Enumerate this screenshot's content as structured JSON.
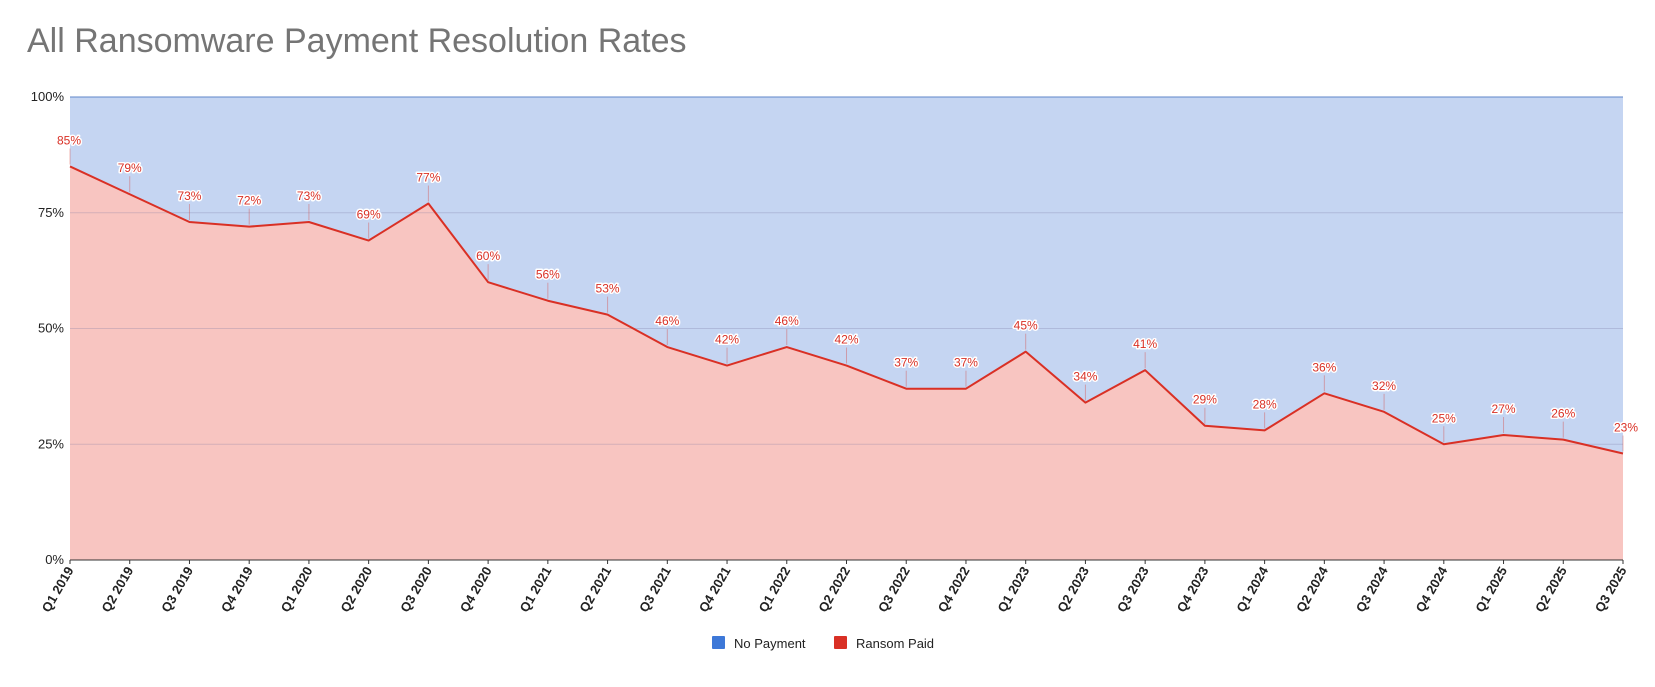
{
  "chart_data": {
    "type": "area",
    "stacked": true,
    "percent_stacked": true,
    "title": "All Ransomware Payment Resolution Rates",
    "xlabel": "",
    "ylabel": "",
    "ylim": [
      0,
      100
    ],
    "y_ticks": [
      "0%",
      "25%",
      "50%",
      "75%",
      "100%"
    ],
    "y_tick_values": [
      0,
      25,
      50,
      75,
      100
    ],
    "grid": true,
    "legend_position": "bottom",
    "categories": [
      "Q1 2019",
      "Q2 2019",
      "Q3 2019",
      "Q4 2019",
      "Q1 2020",
      "Q2 2020",
      "Q3 2020",
      "Q4 2020",
      "Q1 2021",
      "Q2 2021",
      "Q3 2021",
      "Q4 2021",
      "Q1 2022",
      "Q2 2022",
      "Q3 2022",
      "Q4 2022",
      "Q1 2023",
      "Q2 2023",
      "Q3 2023",
      "Q4 2023",
      "Q1 2024",
      "Q2 2024",
      "Q3 2024",
      "Q4 2024",
      "Q1 2025",
      "Q2 2025",
      "Q3 2025"
    ],
    "series": [
      {
        "name": "No Payment",
        "color": "#3d78d8",
        "fill": "#c5d5f2",
        "values": [
          15,
          21,
          27,
          28,
          27,
          31,
          23,
          40,
          44,
          47,
          54,
          58,
          54,
          58,
          63,
          63,
          55,
          66,
          59,
          71,
          72,
          64,
          68,
          75,
          73,
          74,
          77
        ]
      },
      {
        "name": "Ransom Paid",
        "color": "#d93025",
        "fill": "#f8c5c1",
        "values": [
          85,
          79,
          73,
          72,
          73,
          69,
          77,
          60,
          56,
          53,
          46,
          42,
          46,
          42,
          37,
          37,
          45,
          34,
          41,
          29,
          28,
          36,
          32,
          25,
          27,
          26,
          23
        ],
        "data_labels": [
          "85%",
          "79%",
          "73%",
          "72%",
          "73%",
          "69%",
          "77%",
          "60%",
          "56%",
          "53%",
          "46%",
          "42%",
          "46%",
          "42%",
          "37%",
          "37%",
          "45%",
          "34%",
          "41%",
          "29%",
          "28%",
          "36%",
          "32%",
          "25%",
          "27%",
          "26%",
          "23%"
        ]
      }
    ]
  }
}
